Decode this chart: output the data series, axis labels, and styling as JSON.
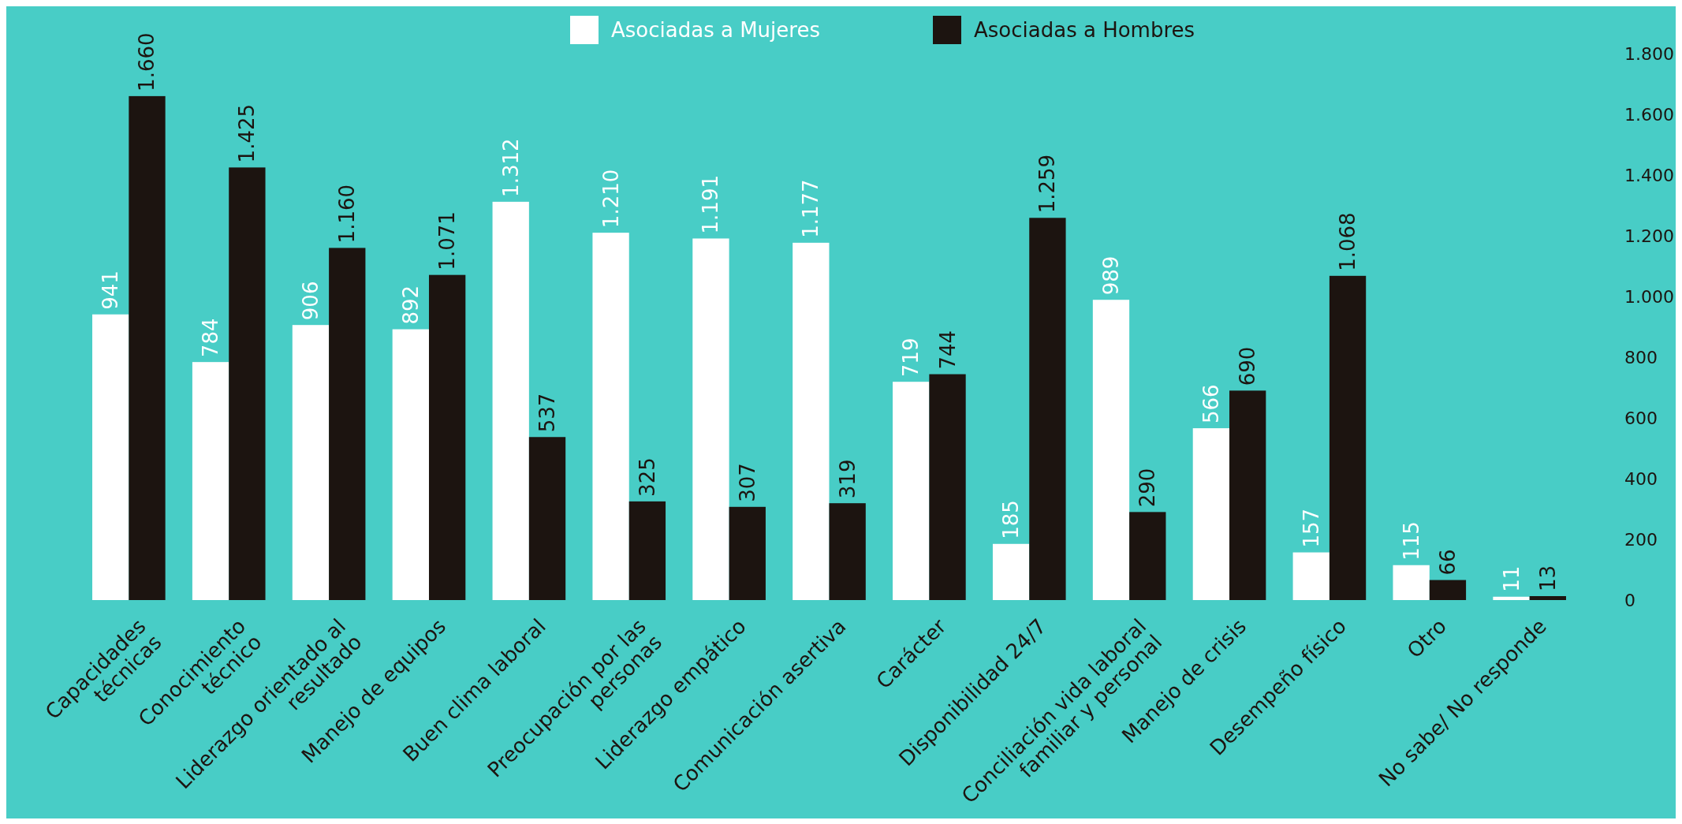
{
  "chart_data": {
    "type": "bar",
    "categories": [
      "Capacidades\ntécnicas",
      "Conocimiento\ntécnico",
      "Liderazgo orientado al\nresultado",
      "Manejo de equipos",
      "Buen clima laboral",
      "Preocupación por las\npersonas",
      "Liderazgo empático",
      "Comunicación asertiva",
      "Carácter",
      "Disponibilidad 24/7",
      "Conciliación vida laboral\nfamiliar y personal",
      "Manejo de crisis",
      "Desempeño físico",
      "Otro",
      "No sabe/ No responde"
    ],
    "series": [
      {
        "name": "Asociadas a Mujeres",
        "color": "#ffffff",
        "values": [
          941,
          784,
          906,
          892,
          1312,
          1210,
          1191,
          1177,
          719,
          185,
          989,
          566,
          157,
          115,
          11
        ],
        "value_labels": [
          "941",
          "784",
          "906",
          "892",
          "1.312",
          "1.210",
          "1.191",
          "1.177",
          "719",
          "185",
          "989",
          "566",
          "157",
          "115",
          "11"
        ]
      },
      {
        "name": "Asociadas a Hombres",
        "color": "#1c1410",
        "values": [
          1660,
          1425,
          1160,
          1071,
          537,
          325,
          307,
          319,
          744,
          1259,
          290,
          690,
          1068,
          66,
          13
        ],
        "value_labels": [
          "1.660",
          "1.425",
          "1.160",
          "1.071",
          "537",
          "325",
          "307",
          "319",
          "744",
          "1.259",
          "290",
          "690",
          "1.068",
          "66",
          "13"
        ]
      }
    ],
    "ylim": [
      0,
      1800
    ],
    "yticks": [
      0,
      200,
      400,
      600,
      800,
      {
        "value": 1000,
        "label": "1.000"
      },
      {
        "value": 1200,
        "label": "1.200"
      },
      {
        "value": 1400,
        "label": "1.400"
      },
      {
        "value": 1600,
        "label": "1.600"
      },
      {
        "value": 1800,
        "label": "1.800"
      }
    ],
    "legend": "top",
    "grid": false
  }
}
